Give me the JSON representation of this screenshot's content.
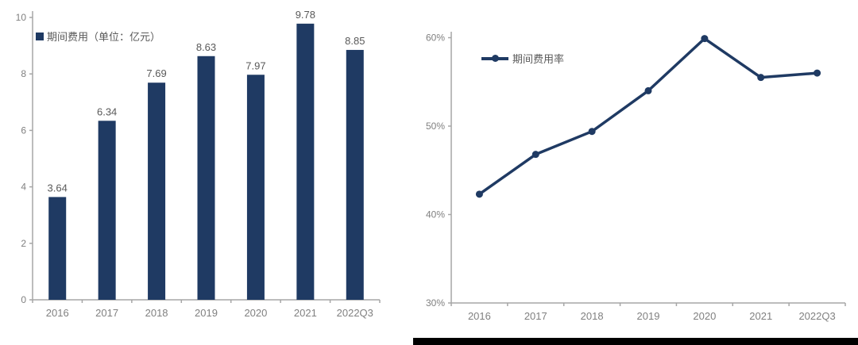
{
  "page": {
    "background": "#ffffff"
  },
  "colors": {
    "series_navy": "#1f3a63",
    "axis_gray": "#a6a6a6",
    "tick_label_gray": "#808080",
    "value_label_gray": "#595959",
    "footer_black": "#000000"
  },
  "chart_data": [
    {
      "type": "bar",
      "legend": "期间费用（单位：亿元）",
      "categories": [
        "2016",
        "2017",
        "2018",
        "2019",
        "2020",
        "2021",
        "2022Q3"
      ],
      "values": [
        3.64,
        6.34,
        7.69,
        8.63,
        7.97,
        9.78,
        8.85
      ],
      "data_labels": [
        "3.64",
        "6.34",
        "7.69",
        "8.63",
        "7.97",
        "9.78",
        "8.85"
      ],
      "y_tick_values": [
        0,
        2,
        4,
        6,
        8,
        10
      ],
      "y_tick_labels": [
        "0",
        "2",
        "4",
        "6",
        "8",
        "10"
      ],
      "ylim": [
        0,
        10
      ],
      "xlabel": "",
      "ylabel": "",
      "grid": false,
      "legend_position": "top-left",
      "bar_color": "#1f3a63"
    },
    {
      "type": "line",
      "legend": "期间费用率",
      "categories": [
        "2016",
        "2017",
        "2018",
        "2019",
        "2020",
        "2021",
        "2022Q3"
      ],
      "values": [
        42.3,
        46.8,
        49.4,
        54.0,
        59.9,
        55.5,
        56.0
      ],
      "y_tick_values": [
        30,
        40,
        50,
        60
      ],
      "y_tick_labels": [
        "30%",
        "40%",
        "50%",
        "60%"
      ],
      "ylim": [
        30,
        62
      ],
      "xlabel": "",
      "ylabel": "",
      "grid": false,
      "legend_position": "top-left",
      "line_color": "#1f3a63",
      "marker": "circle"
    }
  ]
}
